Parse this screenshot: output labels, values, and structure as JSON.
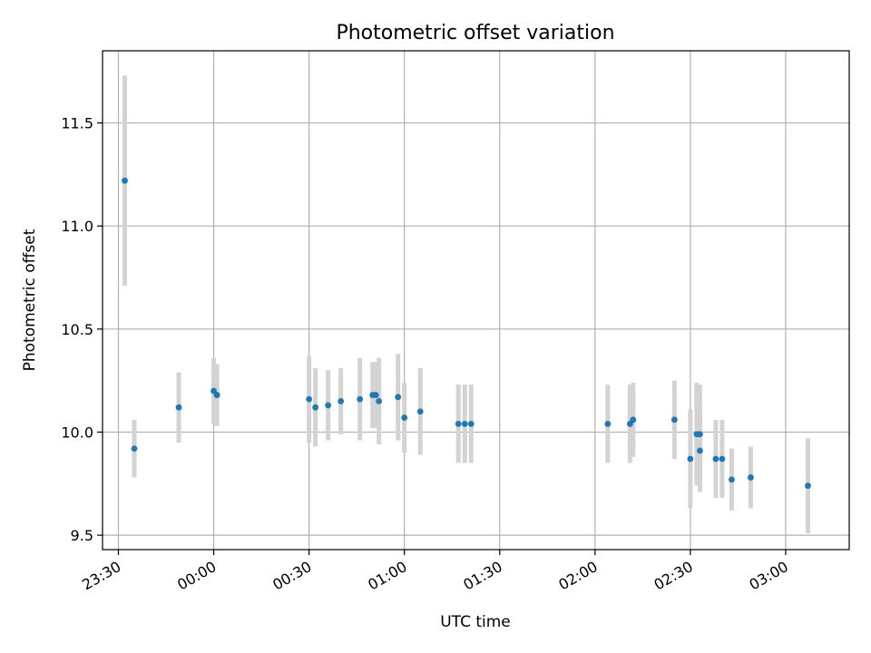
{
  "chart_data": {
    "type": "scatter",
    "title": "Photometric offset variation",
    "xlabel": "UTC time",
    "ylabel": "Photometric offset",
    "x_unit": "time of day (HH:MM, UTC, starting 23:30 and crossing midnight)",
    "xlim": [
      "23:25",
      "03:20"
    ],
    "ylim": [
      9.43,
      11.85
    ],
    "x_ticks": [
      "23:30",
      "00:00",
      "00:30",
      "01:00",
      "01:30",
      "02:00",
      "02:30",
      "03:00"
    ],
    "y_ticks": [
      9.5,
      10.0,
      10.5,
      11.0,
      11.5
    ],
    "y_tick_labels": [
      "9.5",
      "10.0",
      "10.5",
      "11.0",
      "11.5"
    ],
    "grid": true,
    "marker_color": "#1f77b4",
    "errorbar_color": "#d3d3d3",
    "points": [
      {
        "x": "23:32",
        "y": 11.22,
        "err": 0.51
      },
      {
        "x": "23:35",
        "y": 9.92,
        "err": 0.14
      },
      {
        "x": "23:49",
        "y": 10.12,
        "err": 0.17
      },
      {
        "x": "00:00",
        "y": 10.2,
        "err": 0.16
      },
      {
        "x": "00:01",
        "y": 10.18,
        "err": 0.15
      },
      {
        "x": "00:01",
        "y": 10.18,
        "err": 0.15
      },
      {
        "x": "00:30",
        "y": 10.16,
        "err": 0.21
      },
      {
        "x": "00:32",
        "y": 10.12,
        "err": 0.19
      },
      {
        "x": "00:36",
        "y": 10.13,
        "err": 0.17
      },
      {
        "x": "00:40",
        "y": 10.15,
        "err": 0.16
      },
      {
        "x": "00:46",
        "y": 10.16,
        "err": 0.2
      },
      {
        "x": "00:50",
        "y": 10.18,
        "err": 0.16
      },
      {
        "x": "00:51",
        "y": 10.18,
        "err": 0.16
      },
      {
        "x": "00:52",
        "y": 10.15,
        "err": 0.21
      },
      {
        "x": "00:58",
        "y": 10.17,
        "err": 0.21
      },
      {
        "x": "01:00",
        "y": 10.07,
        "err": 0.17
      },
      {
        "x": "01:05",
        "y": 10.1,
        "err": 0.21
      },
      {
        "x": "01:17",
        "y": 10.04,
        "err": 0.19
      },
      {
        "x": "01:19",
        "y": 10.04,
        "err": 0.19
      },
      {
        "x": "01:21",
        "y": 10.04,
        "err": 0.19
      },
      {
        "x": "02:04",
        "y": 10.04,
        "err": 0.19
      },
      {
        "x": "02:11",
        "y": 10.04,
        "err": 0.19
      },
      {
        "x": "02:12",
        "y": 10.06,
        "err": 0.18
      },
      {
        "x": "02:25",
        "y": 10.06,
        "err": 0.19
      },
      {
        "x": "02:30",
        "y": 9.87,
        "err": 0.24
      },
      {
        "x": "02:32",
        "y": 9.99,
        "err": 0.25
      },
      {
        "x": "02:33",
        "y": 9.99,
        "err": 0.24
      },
      {
        "x": "02:33",
        "y": 9.91,
        "err": 0.2
      },
      {
        "x": "02:38",
        "y": 9.87,
        "err": 0.19
      },
      {
        "x": "02:40",
        "y": 9.87,
        "err": 0.19
      },
      {
        "x": "02:43",
        "y": 9.77,
        "err": 0.15
      },
      {
        "x": "02:49",
        "y": 9.78,
        "err": 0.15
      },
      {
        "x": "03:07",
        "y": 9.74,
        "err": 0.23
      }
    ]
  }
}
